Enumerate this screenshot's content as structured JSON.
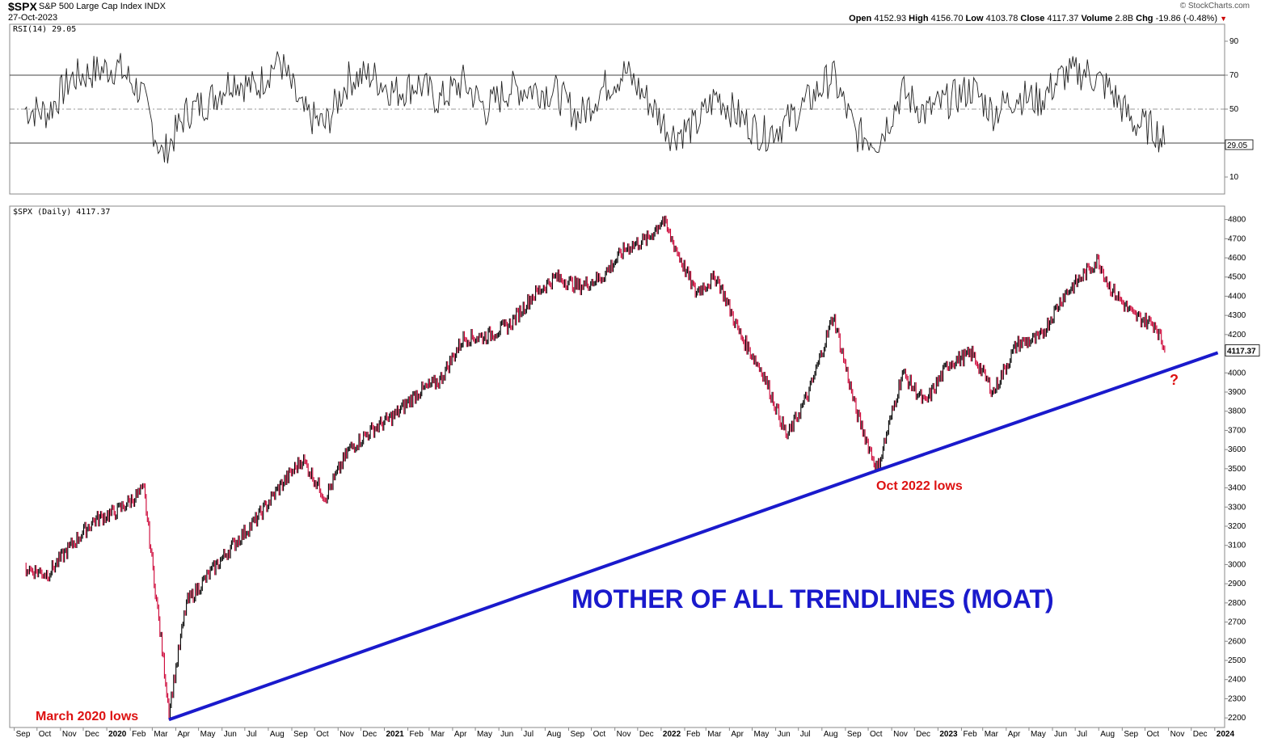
{
  "header": {
    "symbol": "$SPX",
    "description": "S&P 500 Large Cap Index  INDX",
    "date": "27-Oct-2023",
    "watermark": "© StockCharts.com",
    "open_label": "Open",
    "open": "4152.93",
    "high_label": "High",
    "high": "4156.70",
    "low_label": "Low",
    "low": "4103.78",
    "close_label": "Close",
    "close": "4117.37",
    "volume_label": "Volume",
    "volume": "2.8B",
    "chg_label": "Chg",
    "chg": "-19.86 (-0.48%)"
  },
  "rsi_panel": {
    "label": "RSI(14) 29.05",
    "current_value": "29.05",
    "ticks": [
      90,
      70,
      50,
      30,
      10
    ],
    "ylim": [
      0,
      100
    ],
    "overbought": 70,
    "oversold": 30,
    "midline": 50
  },
  "price_panel": {
    "label": "$SPX (Daily) 4117.37",
    "current_value": "4117.37"
  },
  "x_axis_labels": [
    "Sep",
    "Oct",
    "Nov",
    "Dec",
    "2020",
    "Feb",
    "Mar",
    "Apr",
    "May",
    "Jun",
    "Jul",
    "Aug",
    "Sep",
    "Oct",
    "Nov",
    "Dec",
    "2021",
    "Feb",
    "Mar",
    "Apr",
    "May",
    "Jun",
    "Jul",
    "Aug",
    "Sep",
    "Oct",
    "Nov",
    "Dec",
    "2022",
    "Feb",
    "Mar",
    "Apr",
    "May",
    "Jun",
    "Jul",
    "Aug",
    "Sep",
    "Oct",
    "Nov",
    "Dec",
    "2023",
    "Feb",
    "Mar",
    "Apr",
    "May",
    "Jun",
    "Jul",
    "Aug",
    "Sep",
    "Oct",
    "Nov",
    "Dec",
    "2024"
  ],
  "annotations": {
    "title": "MOTHER OF ALL TRENDLINES (MOAT)",
    "march_lows": "March 2020 lows",
    "oct_lows": "Oct 2022 lows",
    "question": "?"
  },
  "colors": {
    "trendline": "#1a1acc",
    "annotation_red": "#dd1111",
    "price_up": "#000000",
    "price_down": "#cc0033",
    "rsi_fill": "#4a7a4a"
  },
  "chart_data": [
    {
      "type": "line",
      "name": "RSI(14)",
      "x": [
        "2019-09",
        "2019-10",
        "2019-11",
        "2019-12",
        "2020-01",
        "2020-02",
        "2020-03",
        "2020-04",
        "2020-05",
        "2020-06",
        "2020-07",
        "2020-08",
        "2020-09",
        "2020-10",
        "2020-11",
        "2020-12",
        "2021-01",
        "2021-02",
        "2021-03",
        "2021-04",
        "2021-05",
        "2021-06",
        "2021-07",
        "2021-08",
        "2021-09",
        "2021-10",
        "2021-11",
        "2021-12",
        "2022-01",
        "2022-02",
        "2022-03",
        "2022-04",
        "2022-05",
        "2022-06",
        "2022-07",
        "2022-08",
        "2022-09",
        "2022-10",
        "2022-11",
        "2022-12",
        "2023-01",
        "2023-02",
        "2023-03",
        "2023-04",
        "2023-05",
        "2023-06",
        "2023-07",
        "2023-08",
        "2023-09",
        "2023-10",
        "2023-10-27"
      ],
      "y": [
        50,
        48,
        68,
        72,
        75,
        60,
        22,
        48,
        55,
        68,
        62,
        80,
        48,
        40,
        68,
        70,
        60,
        65,
        55,
        66,
        50,
        62,
        62,
        60,
        45,
        62,
        72,
        55,
        35,
        40,
        58,
        45,
        35,
        42,
        55,
        70,
        35,
        32,
        60,
        48,
        55,
        62,
        48,
        58,
        55,
        70,
        72,
        62,
        42,
        38,
        29.05
      ],
      "ylim": [
        0,
        100
      ],
      "reference_lines": [
        30,
        50,
        70
      ]
    },
    {
      "type": "line",
      "name": "$SPX (Daily)",
      "x": [
        "2019-09",
        "2019-10",
        "2019-11",
        "2019-12",
        "2020-01",
        "2020-02-19",
        "2020-03-23",
        "2020-04",
        "2020-05",
        "2020-06",
        "2020-07",
        "2020-08",
        "2020-09",
        "2020-10",
        "2020-11",
        "2020-12",
        "2021-01",
        "2021-02",
        "2021-03",
        "2021-04",
        "2021-05",
        "2021-06",
        "2021-07",
        "2021-08",
        "2021-09",
        "2021-10",
        "2021-11",
        "2021-12",
        "2022-01-03",
        "2022-02",
        "2022-03",
        "2022-04",
        "2022-05",
        "2022-06-16",
        "2022-07",
        "2022-08-16",
        "2022-09",
        "2022-10-13",
        "2022-11",
        "2022-12",
        "2023-01",
        "2023-02",
        "2023-03",
        "2023-04",
        "2023-05",
        "2023-06",
        "2023-07-31",
        "2023-08",
        "2023-09",
        "2023-10",
        "2023-10-27"
      ],
      "y": [
        2980,
        2950,
        3100,
        3230,
        3280,
        3390,
        2237,
        2800,
        2950,
        3100,
        3230,
        3400,
        3550,
        3350,
        3600,
        3700,
        3780,
        3900,
        3960,
        4180,
        4190,
        4250,
        4400,
        4500,
        4450,
        4500,
        4650,
        4700,
        4800,
        4420,
        4500,
        4200,
        4000,
        3666,
        3900,
        4300,
        3800,
        3491,
        4000,
        3840,
        4050,
        4100,
        3900,
        4150,
        4180,
        4400,
        4590,
        4450,
        4300,
        4250,
        4117.37
      ],
      "ylim": [
        2150,
        4870
      ],
      "ticks": [
        2200,
        2300,
        2400,
        2500,
        2600,
        2700,
        2800,
        2900,
        3000,
        3100,
        3200,
        3300,
        3400,
        3500,
        3600,
        3700,
        3800,
        3900,
        4000,
        4100,
        4200,
        4300,
        4400,
        4500,
        4600,
        4700,
        4800
      ]
    },
    {
      "type": "line",
      "name": "MOTHER OF ALL TRENDLINES (MOAT)",
      "x": [
        "2020-03-23",
        "2022-10-13",
        "2024-01-05"
      ],
      "y": [
        2191,
        3491,
        4105
      ]
    }
  ]
}
